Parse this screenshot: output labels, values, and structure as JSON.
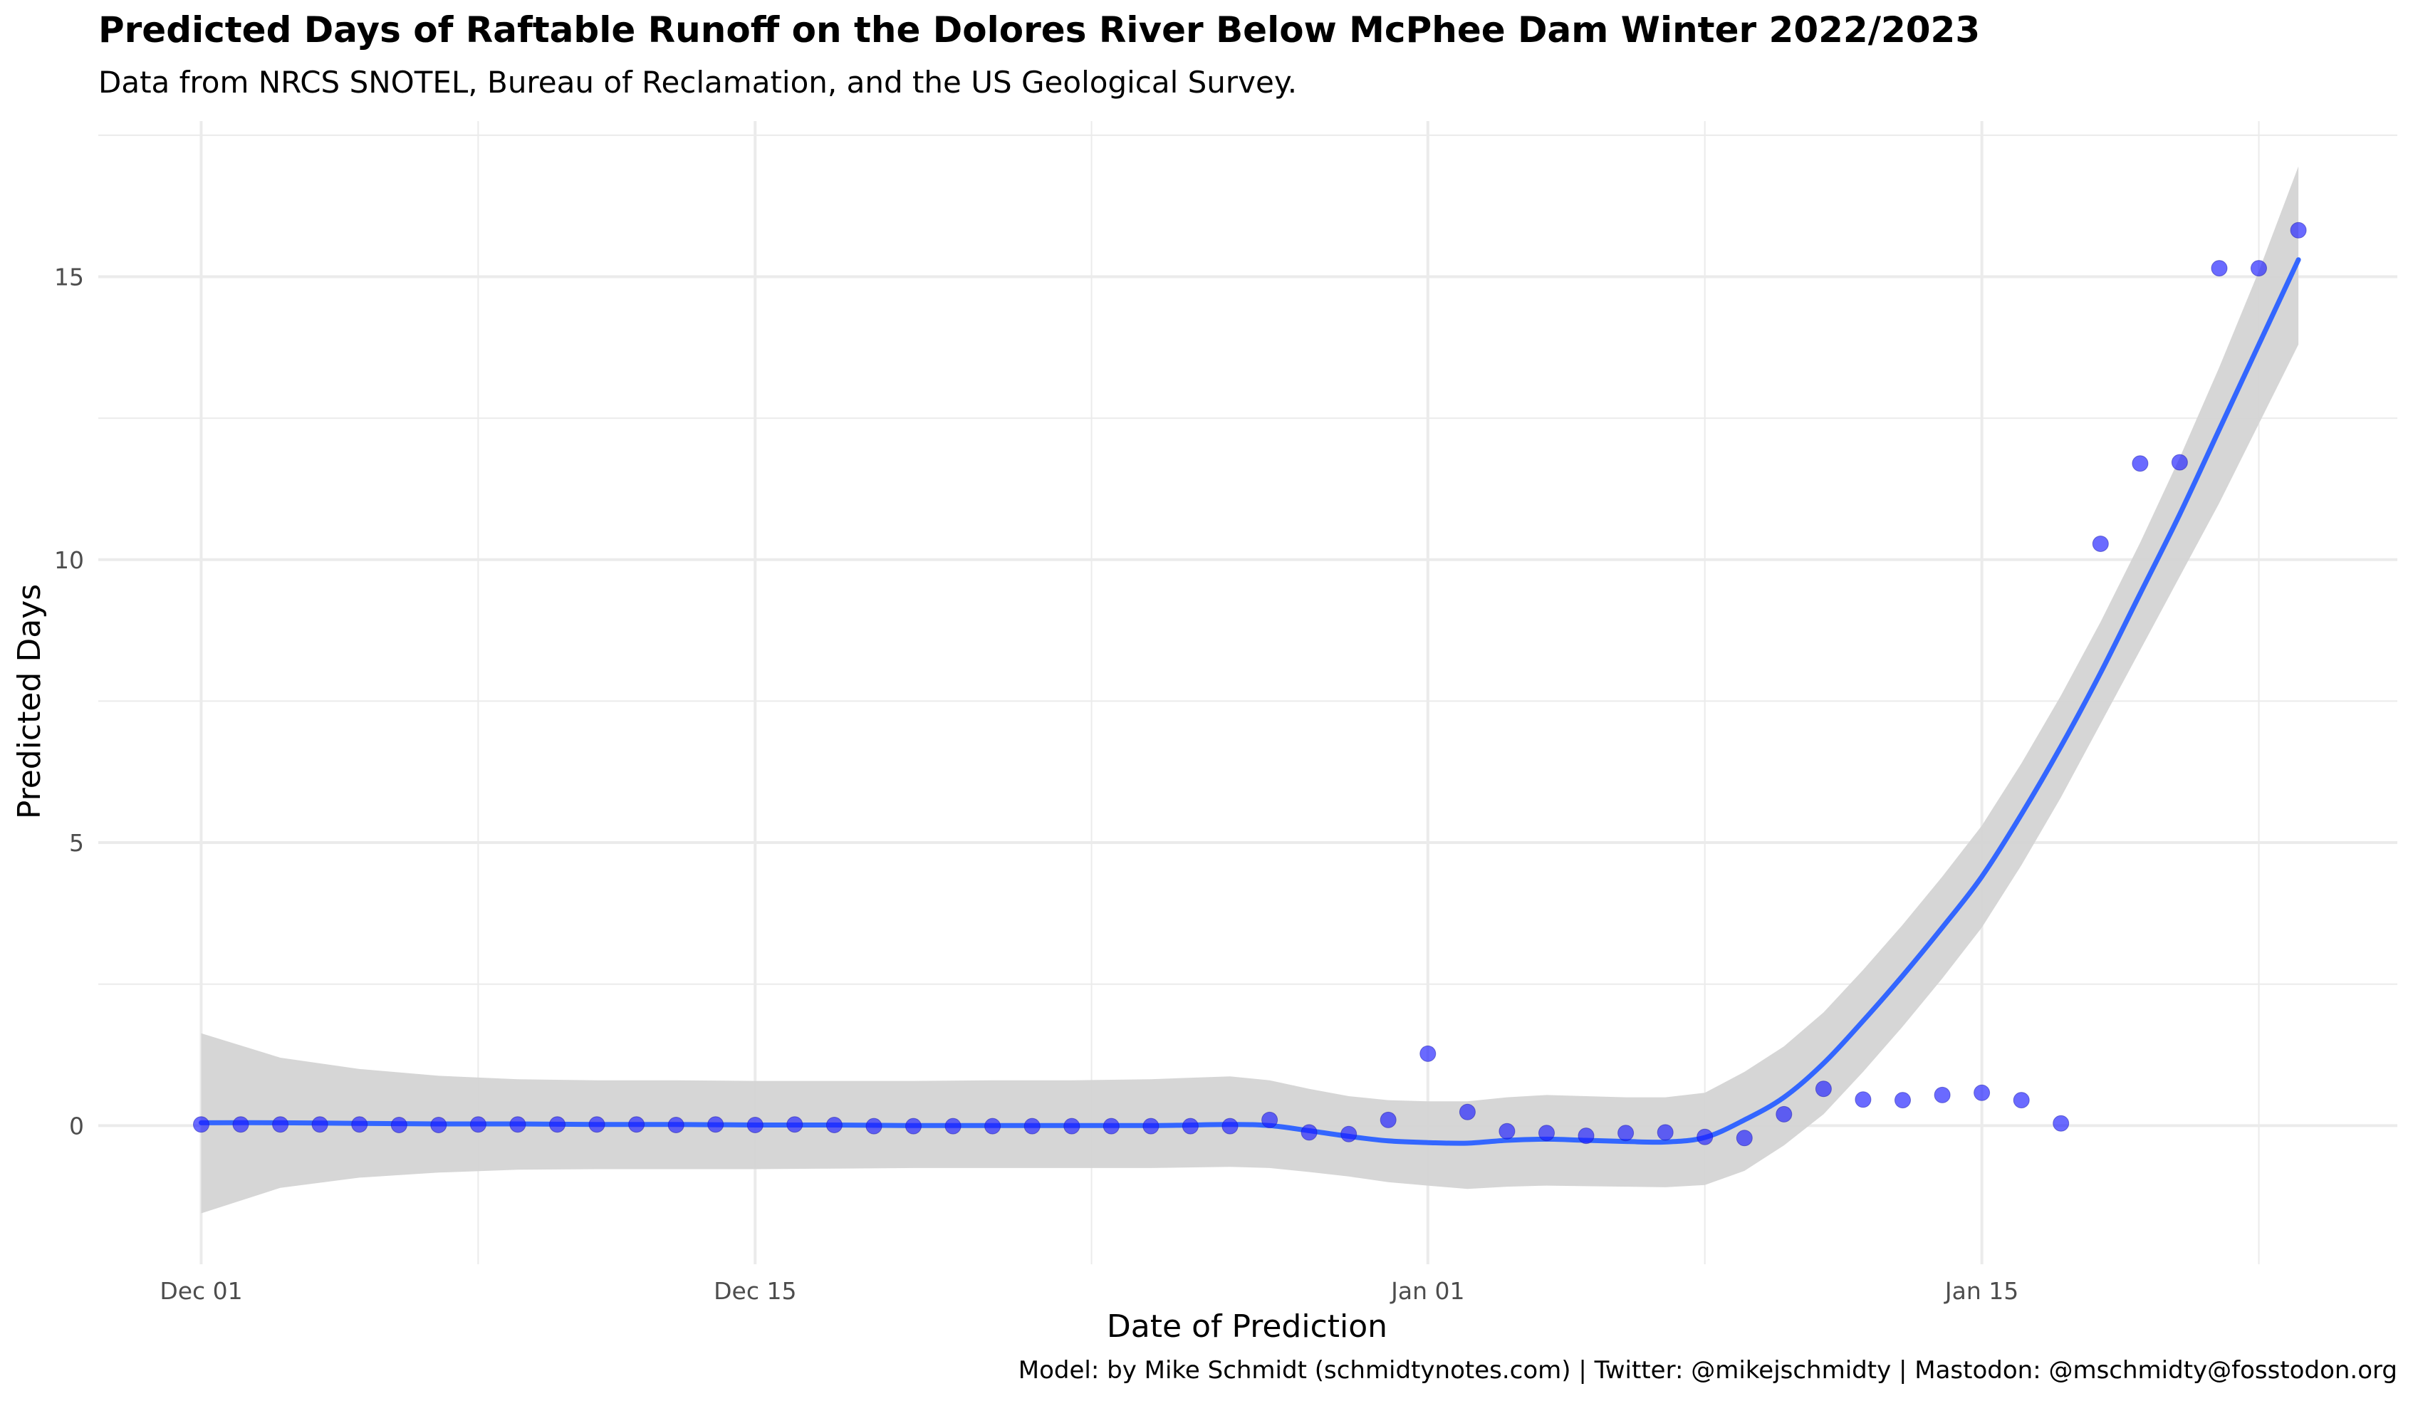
{
  "chart_data": {
    "type": "scatter",
    "title": "Predicted Days of Raftable Runoff on the Dolores River Below McPhee Dam Winter 2022/2023",
    "subtitle": "Data from NRCS SNOTEL, Bureau of Reclamation, and the US Geological Survey.",
    "xlabel": "Date of Prediction",
    "ylabel": "Predicted Days",
    "caption": "Model: by Mike Schmidt (schmidtynotes.com) | Twitter: @mikejschmidty | Mastodon: @mschmidty@fosstodon.org",
    "x_ticks": [
      {
        "day": 0,
        "label": "Dec 01"
      },
      {
        "day": 14,
        "label": "Dec 15"
      },
      {
        "day": 31,
        "label": "Jan 01"
      },
      {
        "day": 45,
        "label": "Jan 15"
      }
    ],
    "y_ticks": [
      0,
      5,
      10,
      15
    ],
    "xlim_days": [
      -2.6,
      55.5
    ],
    "ylim": [
      -2.45,
      17.75
    ],
    "grid": true,
    "x_unit_note": "day index counted from Dec 01 2022",
    "points": [
      {
        "day": 0,
        "value": 0.02
      },
      {
        "day": 1,
        "value": 0.02
      },
      {
        "day": 2,
        "value": 0.02
      },
      {
        "day": 3,
        "value": 0.02
      },
      {
        "day": 4,
        "value": 0.02
      },
      {
        "day": 5,
        "value": 0.01
      },
      {
        "day": 6,
        "value": 0.01
      },
      {
        "day": 7,
        "value": 0.02
      },
      {
        "day": 8,
        "value": 0.02
      },
      {
        "day": 9,
        "value": 0.02
      },
      {
        "day": 10,
        "value": 0.02
      },
      {
        "day": 11,
        "value": 0.02
      },
      {
        "day": 12,
        "value": 0.01
      },
      {
        "day": 13,
        "value": 0.02
      },
      {
        "day": 14,
        "value": 0.01
      },
      {
        "day": 15,
        "value": 0.02
      },
      {
        "day": 16,
        "value": 0.01
      },
      {
        "day": 17,
        "value": -0.01
      },
      {
        "day": 18,
        "value": -0.01
      },
      {
        "day": 19,
        "value": -0.01
      },
      {
        "day": 20,
        "value": -0.01
      },
      {
        "day": 21,
        "value": -0.01
      },
      {
        "day": 22,
        "value": -0.01
      },
      {
        "day": 23,
        "value": -0.01
      },
      {
        "day": 24,
        "value": -0.01
      },
      {
        "day": 25,
        "value": -0.01
      },
      {
        "day": 26,
        "value": -0.01
      },
      {
        "day": 27,
        "value": 0.1
      },
      {
        "day": 28,
        "value": -0.12
      },
      {
        "day": 29,
        "value": -0.15
      },
      {
        "day": 30,
        "value": 0.1
      },
      {
        "day": 31,
        "value": 1.27
      },
      {
        "day": 32,
        "value": 0.24
      },
      {
        "day": 33,
        "value": -0.1
      },
      {
        "day": 34,
        "value": -0.13
      },
      {
        "day": 35,
        "value": -0.18
      },
      {
        "day": 36,
        "value": -0.13
      },
      {
        "day": 37,
        "value": -0.12
      },
      {
        "day": 38,
        "value": -0.2
      },
      {
        "day": 39,
        "value": -0.22
      },
      {
        "day": 40,
        "value": 0.2
      },
      {
        "day": 41,
        "value": 0.65
      },
      {
        "day": 42,
        "value": 0.46
      },
      {
        "day": 43,
        "value": 0.45
      },
      {
        "day": 44,
        "value": 0.54
      },
      {
        "day": 45,
        "value": 0.58
      },
      {
        "day": 46,
        "value": 0.45
      },
      {
        "day": 47,
        "value": 0.04
      },
      {
        "day": 48,
        "value": 10.28
      },
      {
        "day": 49,
        "value": 11.7
      },
      {
        "day": 50,
        "value": 11.72
      },
      {
        "day": 51,
        "value": 15.15
      },
      {
        "day": 52,
        "value": 15.15
      },
      {
        "day": 53,
        "value": 15.82
      }
    ],
    "smooth_series": {
      "name": "",
      "day": [
        0,
        2,
        4,
        6,
        8,
        10,
        12,
        14,
        16,
        18,
        20,
        22,
        24,
        26,
        27,
        28,
        29,
        30,
        31,
        32,
        33,
        34,
        35,
        36,
        37,
        38,
        39,
        40,
        41,
        42,
        43,
        44,
        45,
        46,
        47,
        48,
        49,
        50,
        51,
        52,
        53
      ],
      "fit": [
        0.05,
        0.05,
        0.04,
        0.03,
        0.03,
        0.02,
        0.02,
        0.01,
        0.01,
        0.0,
        0.0,
        0.0,
        0.0,
        0.02,
        0.0,
        -0.09,
        -0.19,
        -0.27,
        -0.3,
        -0.31,
        -0.26,
        -0.24,
        -0.26,
        -0.28,
        -0.29,
        -0.21,
        0.1,
        0.5,
        1.1,
        1.85,
        2.65,
        3.5,
        4.4,
        5.5,
        6.7,
        8.0,
        9.4,
        10.8,
        12.3,
        13.8,
        15.3
      ],
      "lower": [
        -1.55,
        -1.1,
        -0.92,
        -0.83,
        -0.78,
        -0.77,
        -0.77,
        -0.77,
        -0.76,
        -0.75,
        -0.75,
        -0.75,
        -0.75,
        -0.73,
        -0.75,
        -0.82,
        -0.9,
        -1.0,
        -1.06,
        -1.12,
        -1.08,
        -1.06,
        -1.07,
        -1.08,
        -1.09,
        -1.05,
        -0.8,
        -0.35,
        0.2,
        0.95,
        1.75,
        2.6,
        3.5,
        4.6,
        5.8,
        7.1,
        8.4,
        9.7,
        11.0,
        12.4,
        13.8
      ],
      "upper": [
        1.63,
        1.2,
        1.0,
        0.88,
        0.82,
        0.8,
        0.8,
        0.79,
        0.79,
        0.79,
        0.8,
        0.8,
        0.82,
        0.87,
        0.8,
        0.65,
        0.52,
        0.45,
        0.43,
        0.43,
        0.5,
        0.54,
        0.52,
        0.5,
        0.5,
        0.58,
        0.95,
        1.4,
        2.0,
        2.75,
        3.55,
        4.4,
        5.3,
        6.4,
        7.6,
        8.9,
        10.3,
        11.8,
        13.4,
        15.1,
        16.95
      ]
    },
    "colors": {
      "point": "#1a1aff",
      "line": "#3366ff",
      "ribbon": "#d4d4d4",
      "grid": "#ebebeb"
    }
  }
}
